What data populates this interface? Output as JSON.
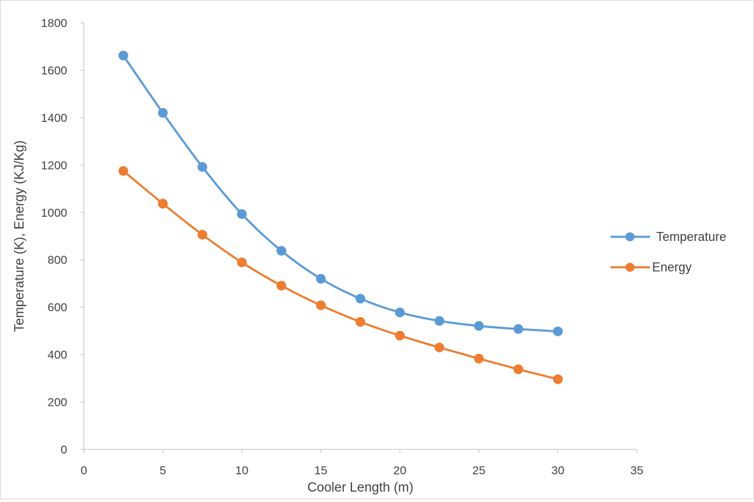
{
  "chart_data": {
    "type": "line",
    "xlabel": "Cooler Length (m)",
    "ylabel": "Temperature (K), Energy (KJ/Kg)",
    "xlim": [
      0,
      35
    ],
    "ylim": [
      0,
      1800
    ],
    "x_ticks": [
      "0",
      "5",
      "10",
      "15",
      "20",
      "25",
      "30",
      "35"
    ],
    "y_ticks": [
      "0",
      "200",
      "400",
      "600",
      "800",
      "1000",
      "1200",
      "1400",
      "1600",
      "1800"
    ],
    "grid": false,
    "legend_position": "right",
    "x": [
      2.5,
      5,
      7.5,
      10,
      12.5,
      15,
      17.5,
      20,
      22.5,
      25,
      27.5,
      30
    ],
    "series": [
      {
        "name": "Temperature",
        "color": "#5b9bd5",
        "values": [
          1662,
          1420,
          1192,
          993,
          838,
          720,
          636,
          578,
          542,
          521,
          508,
          498
        ]
      },
      {
        "name": "Energy",
        "color": "#ed7d31",
        "values": [
          1175,
          1037,
          906,
          789,
          691,
          608,
          538,
          480,
          430,
          383,
          338,
          296
        ]
      }
    ]
  }
}
